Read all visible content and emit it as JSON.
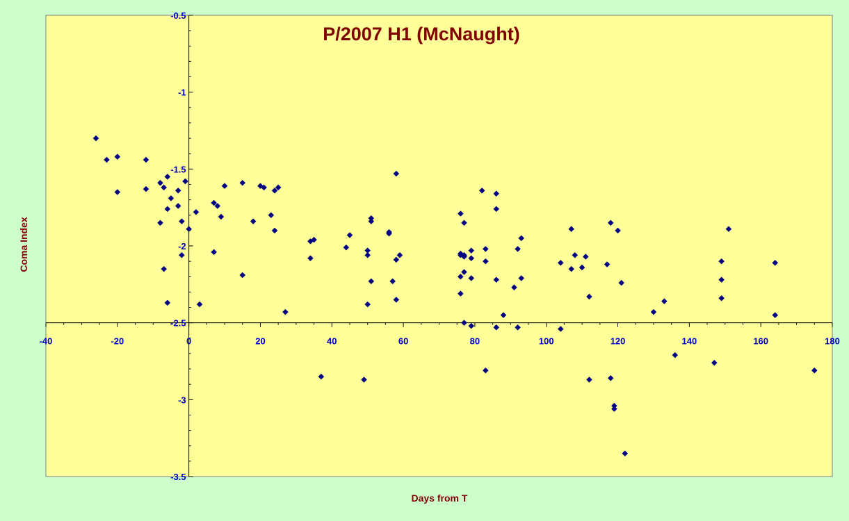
{
  "chart_data": {
    "type": "scatter",
    "title": "P/2007 H1 (McNaught)",
    "xlabel": "Days from T",
    "ylabel": "Coma Index",
    "xlim": [
      -40,
      180
    ],
    "ylim": [
      -3.5,
      -0.5
    ],
    "y_reversed": true,
    "x_ticks": [
      -40,
      -20,
      0,
      20,
      40,
      60,
      80,
      100,
      120,
      140,
      160,
      180
    ],
    "y_ticks": [
      -0.5,
      -1,
      -1.5,
      -2,
      -2.5,
      -3,
      -3.5
    ],
    "x_axis_crosses_y": -2.5,
    "y_axis_crosses_x": 0,
    "grid": false,
    "legend": "none",
    "colors": {
      "background": "#ccffcc",
      "plot_area": "#ffff99",
      "marker": "#000080",
      "title": "#800000",
      "axis_label": "#800000",
      "tick_label": "#0000cc"
    },
    "series": [
      {
        "marker": "diamond",
        "x": [
          -26,
          -23,
          -20,
          -20,
          -12,
          -12,
          -8,
          -8,
          -7,
          -7,
          -6,
          -6,
          -6,
          -5,
          -3,
          -3,
          -2,
          -2,
          -1,
          0,
          2,
          3,
          7,
          7,
          8,
          9,
          10,
          15,
          15,
          18,
          20,
          21,
          23,
          24,
          24,
          25,
          27,
          34,
          34,
          35,
          37,
          44,
          45,
          49,
          50,
          50,
          50,
          51,
          51,
          51,
          56,
          56,
          57,
          58,
          58,
          58,
          59,
          76,
          76,
          76,
          76,
          76,
          77,
          77,
          77,
          77,
          77,
          79,
          79,
          79,
          79,
          82,
          83,
          83,
          83,
          86,
          86,
          86,
          86,
          88,
          91,
          92,
          92,
          93,
          93,
          104,
          104,
          107,
          107,
          108,
          110,
          111,
          112,
          112,
          117,
          118,
          118,
          119,
          119,
          120,
          121,
          122,
          130,
          133,
          136,
          147,
          149,
          149,
          149,
          151,
          164,
          164,
          175
        ],
        "y": [
          -1.3,
          -1.44,
          -1.42,
          -1.65,
          -1.44,
          -1.63,
          -1.59,
          -1.85,
          -2.15,
          -1.62,
          -1.55,
          -1.76,
          -2.37,
          -1.69,
          -1.74,
          -1.64,
          -2.06,
          -1.84,
          -1.58,
          -1.89,
          -1.78,
          -2.38,
          -2.04,
          -1.72,
          -1.74,
          -1.81,
          -1.61,
          -1.59,
          -2.19,
          -1.84,
          -1.61,
          -1.62,
          -1.8,
          -1.64,
          -1.9,
          -1.62,
          -2.43,
          -1.97,
          -2.08,
          -1.96,
          -2.85,
          -2.01,
          -1.93,
          -2.87,
          -2.38,
          -2.03,
          -2.06,
          -1.82,
          -1.84,
          -2.23,
          -1.91,
          -1.92,
          -2.23,
          -1.53,
          -2.09,
          -2.35,
          -2.06,
          -1.79,
          -2.06,
          -2.2,
          -2.31,
          -2.05,
          -1.85,
          -2.06,
          -2.07,
          -2.17,
          -2.5,
          -2.03,
          -2.08,
          -2.21,
          -2.52,
          -1.64,
          -2.02,
          -2.1,
          -2.81,
          -1.66,
          -1.76,
          -2.22,
          -2.53,
          -2.45,
          -2.27,
          -2.02,
          -2.53,
          -1.95,
          -2.21,
          -2.11,
          -2.54,
          -1.89,
          -2.15,
          -2.06,
          -2.14,
          -2.07,
          -2.33,
          -2.87,
          -2.12,
          -1.85,
          -2.86,
          -3.04,
          -3.06,
          -1.9,
          -2.24,
          -3.35,
          -2.43,
          -2.36,
          -2.71,
          -2.76,
          -2.1,
          -2.22,
          -2.34,
          -1.89,
          -2.11,
          -2.45,
          -2.81
        ]
      }
    ]
  }
}
